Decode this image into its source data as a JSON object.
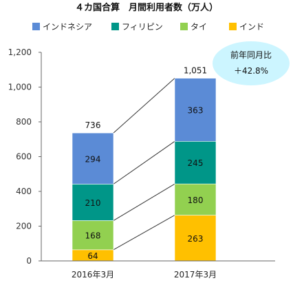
{
  "chart_data": {
    "type": "bar",
    "stacked": true,
    "title": "４カ国合算　月間利用者数（万人）",
    "categories": [
      "2016年3月",
      "2017年3月"
    ],
    "series": [
      {
        "name": "インド",
        "values": [
          64,
          263
        ],
        "color": "#ffc000"
      },
      {
        "name": "タイ",
        "values": [
          168,
          180
        ],
        "color": "#92d050"
      },
      {
        "name": "フィリピン",
        "values": [
          210,
          245
        ],
        "color": "#009688"
      },
      {
        "name": "インドネシア",
        "values": [
          294,
          363
        ],
        "color": "#5b8bd6"
      }
    ],
    "legend_order": [
      "インドネシア",
      "フィリピン",
      "タイ",
      "インド"
    ],
    "totals": [
      736,
      1051
    ],
    "totals_labels": [
      "736",
      "1,051"
    ],
    "ylim": [
      0,
      1200
    ],
    "yticks": [
      0,
      200,
      400,
      600,
      800,
      1000,
      1200
    ],
    "ytick_labels": [
      "0",
      "200",
      "400",
      "600",
      "800",
      "1,000",
      "1,200"
    ],
    "legend_position": "top",
    "grid": false,
    "connector_lines": true
  },
  "callout": {
    "line1": "前年同月比",
    "line2": "＋42.8%",
    "color": "#ccf5ff"
  }
}
